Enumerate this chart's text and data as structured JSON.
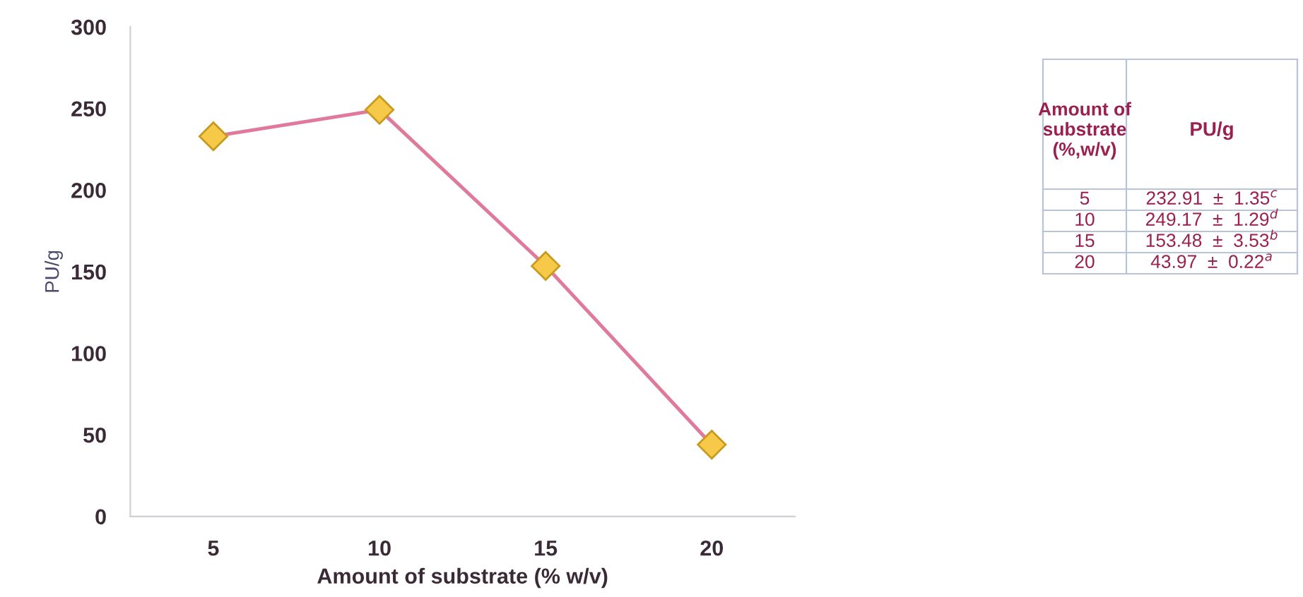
{
  "chart_data": {
    "type": "line",
    "xlabel": "Amount of substrate (% w/v)",
    "ylabel": "PU/g",
    "categories": [
      "5",
      "10",
      "15",
      "20"
    ],
    "series": [
      {
        "color": "#e07a9a",
        "values": [
          232.91,
          249.17,
          153.48,
          43.97
        ]
      }
    ],
    "marker": "diamond",
    "line_style": "solid",
    "ylim": [
      0,
      300
    ],
    "yticks": [
      0,
      50,
      100,
      150,
      200,
      250,
      300
    ],
    "grid": false,
    "annotations": [
      "Amount of\nsubstrate\n(%,w/v)",
      "PU/g",
      "232.91  ±  1.35$^{c}$",
      "249.17  ±  1.29$^{d}$",
      "153.48  ±  3.53$^{b}$",
      "43.97  ±  0.22$^{a}$"
    ]
  }
}
